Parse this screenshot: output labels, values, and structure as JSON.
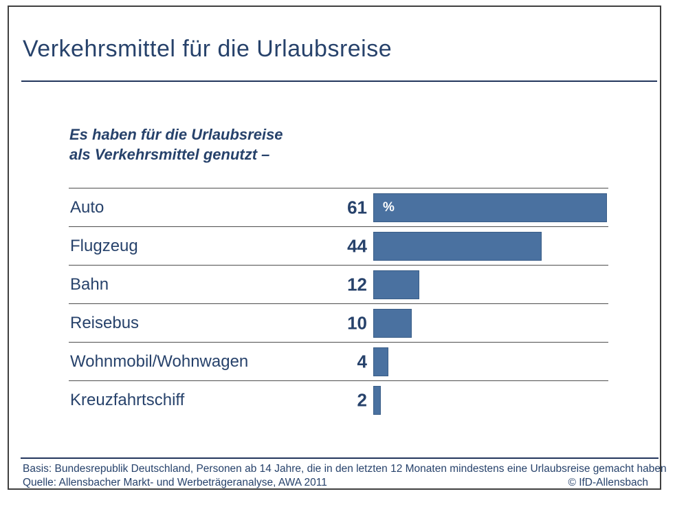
{
  "header": {
    "title": "Verkehrsmittel für die Urlaubsreise"
  },
  "subtitle": {
    "line1": "Es haben für die Urlaubsreise",
    "line2": "als Verkehrsmittel genutzt –"
  },
  "chart_data": {
    "type": "bar",
    "orientation": "horizontal",
    "title": "Verkehrsmittel für die Urlaubsreise",
    "subtitle": "Es haben für die Urlaubsreise als Verkehrsmittel genutzt –",
    "categories": [
      "Auto",
      "Flugzeug",
      "Bahn",
      "Reisebus",
      "Wohnmobil/Wohnwagen",
      "Kreuzfahrtschiff"
    ],
    "values": [
      61,
      44,
      12,
      10,
      4,
      2
    ],
    "unit": "%",
    "unit_label_shown_in_first_bar": "%",
    "value_axis_max": 61,
    "grid": false,
    "legend": "none",
    "data_labels": "left-of-bar"
  },
  "footer": {
    "basis": "Basis: Bundesrepublik Deutschland, Personen ab 14 Jahre, die in den letzten 12 Monaten mindestens eine Urlaubsreise gemacht haben",
    "quelle": "Quelle: Allensbacher Markt- und Werbeträgeranalyse, AWA 2011",
    "copyright": "© IfD-Allensbach"
  },
  "colors": {
    "bar": "#4a71a0",
    "bar_border": "#3a5d87",
    "text": "#27426b",
    "rule": "#22355c",
    "separator": "#4d4d4d",
    "frame_border": "#3f3f3f",
    "background": "#ffffff"
  }
}
